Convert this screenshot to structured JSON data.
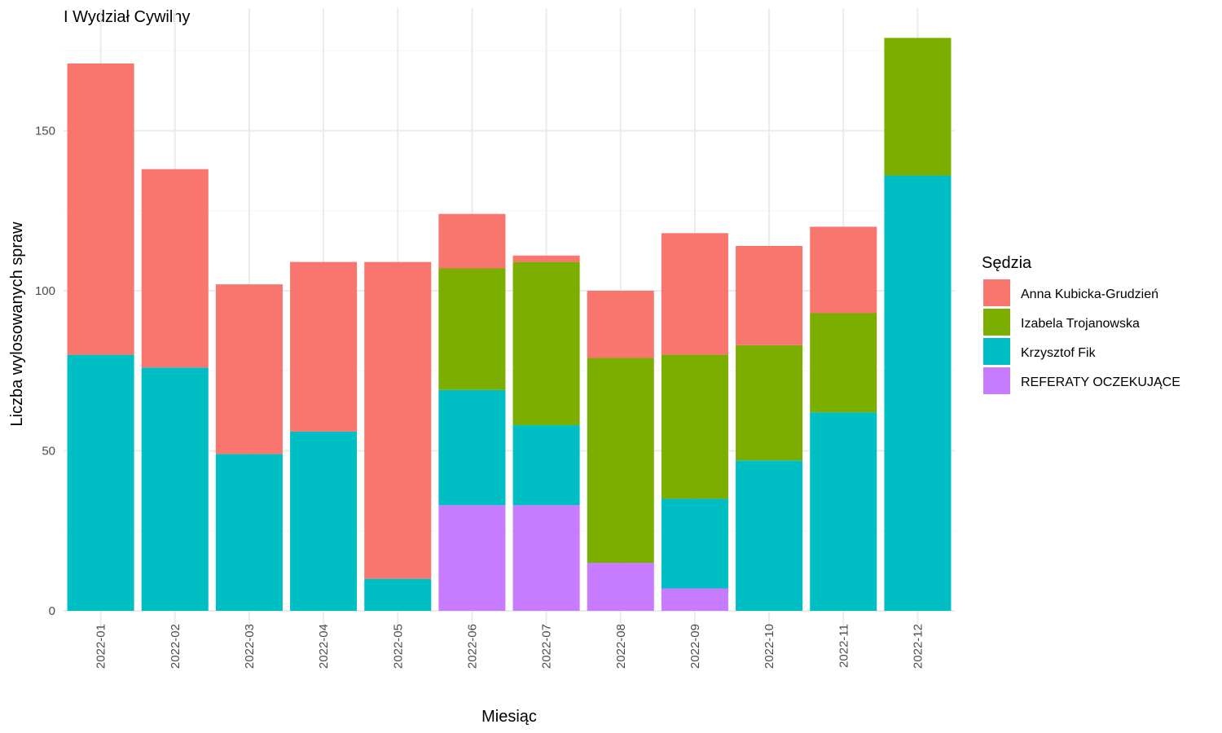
{
  "chart_data": {
    "type": "bar",
    "stacked": true,
    "title": "I Wydział Cywilny",
    "xlabel": "Miesiąc",
    "ylabel": "Liczba wylosowanych spraw",
    "ylim": [
      0,
      188
    ],
    "yticks": [
      0,
      50,
      100,
      150
    ],
    "grid": true,
    "legend": {
      "title": "Sędzia",
      "position": "right"
    },
    "categories": [
      "2022-01",
      "2022-02",
      "2022-03",
      "2022-04",
      "2022-05",
      "2022-06",
      "2022-07",
      "2022-08",
      "2022-09",
      "2022-10",
      "2022-11",
      "2022-12"
    ],
    "series": [
      {
        "name": "Anna Kubicka-Grudzień",
        "color": "#F8766D",
        "values": [
          91,
          62,
          53,
          53,
          99,
          17,
          2,
          21,
          38,
          31,
          27,
          0
        ]
      },
      {
        "name": "Izabela Trojanowska",
        "color": "#7CAE00",
        "values": [
          0,
          0,
          0,
          0,
          0,
          38,
          51,
          64,
          45,
          36,
          31,
          43
        ]
      },
      {
        "name": "Krzysztof Fik",
        "color": "#00BFC4",
        "values": [
          80,
          76,
          49,
          56,
          10,
          36,
          25,
          0,
          28,
          47,
          62,
          136
        ]
      },
      {
        "name": "REFERATY OCZEKUJĄCE",
        "color": "#C77CFF",
        "values": [
          0,
          0,
          0,
          0,
          0,
          33,
          33,
          15,
          7,
          0,
          0,
          0
        ]
      }
    ]
  }
}
